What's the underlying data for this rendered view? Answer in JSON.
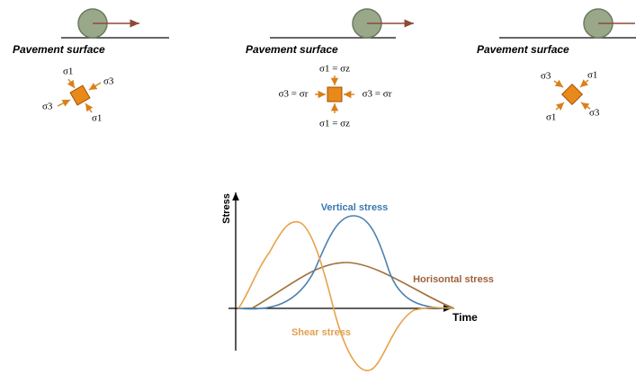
{
  "panels": [
    {
      "label": "Pavement surface",
      "stresses": [
        "σ1",
        "σ3",
        "σ3",
        "σ1"
      ]
    },
    {
      "label": "Pavement surface",
      "stresses": [
        "σ1 = σz",
        "σ3 = σr",
        "σ3 = σr",
        "σ1 = σz"
      ]
    },
    {
      "label": "Pavement surface",
      "stresses": [
        "σ3",
        "σ1",
        "σ1",
        "σ3"
      ]
    }
  ],
  "graph": {
    "y_axis": "Stress",
    "x_axis": "Time",
    "curves": {
      "vertical": "Vertical stress",
      "horizontal": "Horisontal stress",
      "shear": "Shear stress"
    }
  }
}
